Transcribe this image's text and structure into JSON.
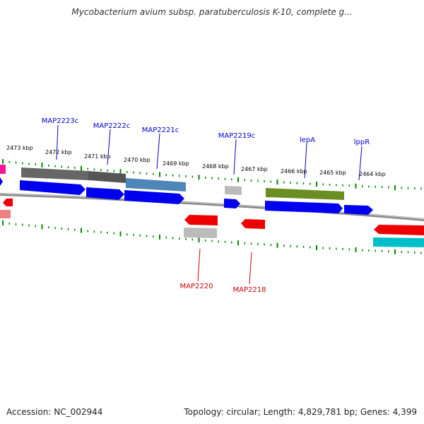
{
  "title": "Mycobacterium avium subsp. paratuberculosis K-10, complete g...",
  "footer": {
    "accession": "Accession: NC_002944",
    "summary": "Topology: circular; Length: 4,829,781 bp; Genes: 4,399"
  },
  "colors": {
    "cds_blue": "#0000ee",
    "gene_gray": "#666666",
    "gene_steel": "#4f86b8",
    "gene_olive": "#6b8e23",
    "gene_red": "#ee0000",
    "gene_cyan": "#00bfc8",
    "gene_magenta": "#ff1493",
    "gene_pink": "#f08080",
    "gene_lightgray": "#bbbbbb",
    "tick_green": "#008800",
    "label_blue": "#0000cc",
    "label_red": "#cc0000"
  },
  "ruler_labels": [
    "2473 kbp",
    "2472 kbp",
    "2471 kbp",
    "2470 kbp",
    "2469 kbp",
    "2468 kbp",
    "2467 kbp",
    "2466 kbp",
    "2465 kbp",
    "2464 kbp"
  ],
  "gene_labels": {
    "forward": [
      "MAP2223c",
      "MAP2222c",
      "MAP2221c",
      "MAP2219c",
      "lepA",
      "lppR"
    ],
    "reverse": [
      "MAP2220",
      "MAP2218"
    ]
  }
}
